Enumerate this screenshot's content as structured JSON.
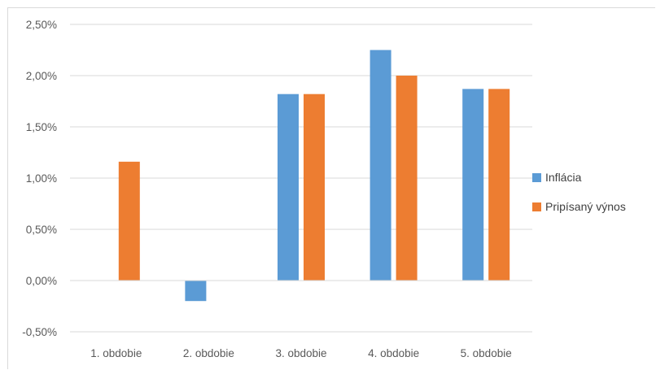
{
  "chart_data": {
    "type": "bar",
    "categories": [
      "1. obdobie",
      "2. obdobie",
      "3. obdobie",
      "4. obdobie",
      "5. obdobie"
    ],
    "series": [
      {
        "name": "Inflácia",
        "color": "#5b9bd5",
        "values": [
          null,
          -0.2,
          1.82,
          2.25,
          1.87
        ]
      },
      {
        "name": "Pripísaný výnos",
        "color": "#ed7d31",
        "values": [
          1.16,
          null,
          1.82,
          2.0,
          1.87
        ]
      }
    ],
    "ylim": [
      -0.5,
      2.5
    ],
    "yticks": [
      2.5,
      2.0,
      1.5,
      1.0,
      0.5,
      0.0,
      -0.5
    ],
    "ytick_labels": [
      "2,50%",
      "2,00%",
      "1,50%",
      "1,00%",
      "0,50%",
      "0,00%",
      "-0,50%"
    ],
    "grid": true,
    "legend": "right",
    "title": "",
    "xlabel": "",
    "ylabel": ""
  }
}
